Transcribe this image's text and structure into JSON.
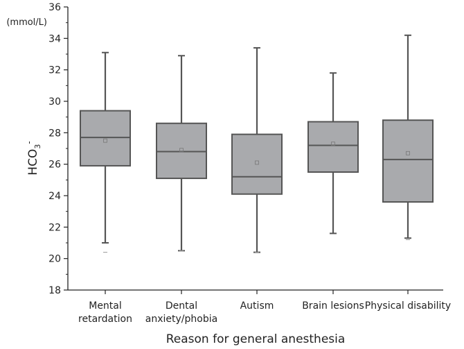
{
  "chart_data": {
    "type": "box",
    "xlabel": "Reason for general anesthesia",
    "ylabel_main": "HCO",
    "ylabel_sub": "3",
    "ylabel_sup": "-",
    "unit": "(mmol/L)",
    "ylim": [
      18,
      36
    ],
    "yticks": [
      18,
      20,
      22,
      24,
      26,
      28,
      30,
      32,
      34,
      36
    ],
    "categories": [
      [
        "Mental",
        "retardation"
      ],
      [
        "Dental",
        "anxiety/phobia"
      ],
      [
        "Autism"
      ],
      [
        "Brain lesions"
      ],
      [
        "Physical disability"
      ]
    ],
    "boxes": [
      {
        "whisker_low": 21.0,
        "q1": 25.9,
        "median": 27.7,
        "q3": 29.4,
        "whisker_high": 33.1,
        "mean": 27.5,
        "outliers": [
          20.4
        ]
      },
      {
        "whisker_low": 20.5,
        "q1": 25.1,
        "median": 26.8,
        "q3": 28.6,
        "whisker_high": 32.9,
        "mean": 26.9,
        "outliers": [
          20.5
        ]
      },
      {
        "whisker_low": 20.4,
        "q1": 24.1,
        "median": 25.2,
        "q3": 27.9,
        "whisker_high": 33.4,
        "mean": 26.1,
        "outliers": [
          20.4
        ]
      },
      {
        "whisker_low": 21.6,
        "q1": 25.5,
        "median": 27.2,
        "q3": 28.7,
        "whisker_high": 31.8,
        "mean": 27.3,
        "outliers": []
      },
      {
        "whisker_low": 21.3,
        "q1": 23.6,
        "median": 26.3,
        "q3": 28.8,
        "whisker_high": 34.2,
        "mean": 26.7,
        "outliers": [
          21.2
        ]
      }
    ],
    "box_color": "#a9aaad",
    "line_color": "#555555",
    "grid": false
  }
}
